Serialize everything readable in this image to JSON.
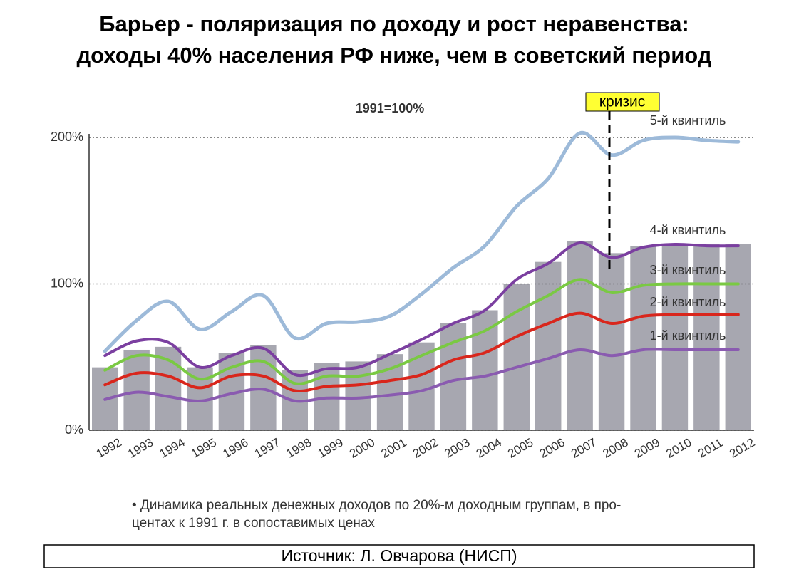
{
  "chart_data": {
    "type": "bar",
    "title": [
      "Барьер - поляризация по доходу и рост неравенства:",
      "доходы 40% населения РФ ниже, чем в советский период"
    ],
    "subtitle": "1991=100%",
    "annotation": "кризис",
    "caption": [
      "• Динамика реальных денежных доходов по 20%-м доходным группам, в про-",
      "центах к 1991 г. в сопоставимых ценах"
    ],
    "source": "Источник: Л. Овчарова (НИСП)",
    "categories": [
      "1992",
      "1993",
      "1994",
      "1995",
      "1996",
      "1997",
      "1998",
      "1999",
      "2000",
      "2001",
      "2002",
      "2003",
      "2004",
      "2005",
      "2006",
      "2007",
      "2008",
      "2009",
      "2010",
      "2011",
      "2012"
    ],
    "values": [
      43,
      55,
      57,
      43,
      53,
      58,
      41,
      46,
      47,
      52,
      60,
      73,
      82,
      100,
      115,
      129,
      121,
      126,
      127,
      127,
      127
    ],
    "color": "#a7a7b0",
    "series": [
      {
        "name": "5-й квинтиль",
        "color": "#9dbad9",
        "values": [
          54,
          75,
          88,
          69,
          81,
          92,
          63,
          73,
          74,
          78,
          93,
          111,
          126,
          153,
          172,
          203,
          188,
          198,
          200,
          198,
          197
        ]
      },
      {
        "name": "4-й квинтиль",
        "color": "#7b3fa0",
        "values": [
          51,
          61,
          60,
          43,
          51,
          56,
          38,
          42,
          43,
          52,
          62,
          73,
          82,
          103,
          114,
          128,
          118,
          125,
          127,
          126,
          126
        ]
      },
      {
        "name": "3-й квинтиль",
        "color": "#7ac943",
        "values": [
          41,
          51,
          48,
          35,
          43,
          47,
          32,
          37,
          37,
          42,
          51,
          60,
          68,
          81,
          92,
          103,
          94,
          99,
          100,
          100,
          100
        ]
      },
      {
        "name": "2-й квинтиль",
        "color": "#d9261c",
        "values": [
          31,
          39,
          37,
          29,
          37,
          37,
          27,
          30,
          31,
          34,
          38,
          48,
          53,
          64,
          73,
          80,
          73,
          78,
          79,
          79,
          79
        ]
      },
      {
        "name": "1-й квинтиль",
        "color": "#8a5bb0",
        "values": [
          21,
          26,
          23,
          20,
          25,
          28,
          20,
          22,
          22,
          24,
          27,
          34,
          37,
          43,
          49,
          55,
          51,
          55,
          55,
          55,
          55
        ]
      }
    ],
    "ylim": [
      0,
      200
    ],
    "yticks": [
      {
        "value": 0,
        "label": "0%"
      },
      {
        "value": 100,
        "label": "100%"
      },
      {
        "value": 200,
        "label": "200%"
      }
    ],
    "grid": true
  }
}
